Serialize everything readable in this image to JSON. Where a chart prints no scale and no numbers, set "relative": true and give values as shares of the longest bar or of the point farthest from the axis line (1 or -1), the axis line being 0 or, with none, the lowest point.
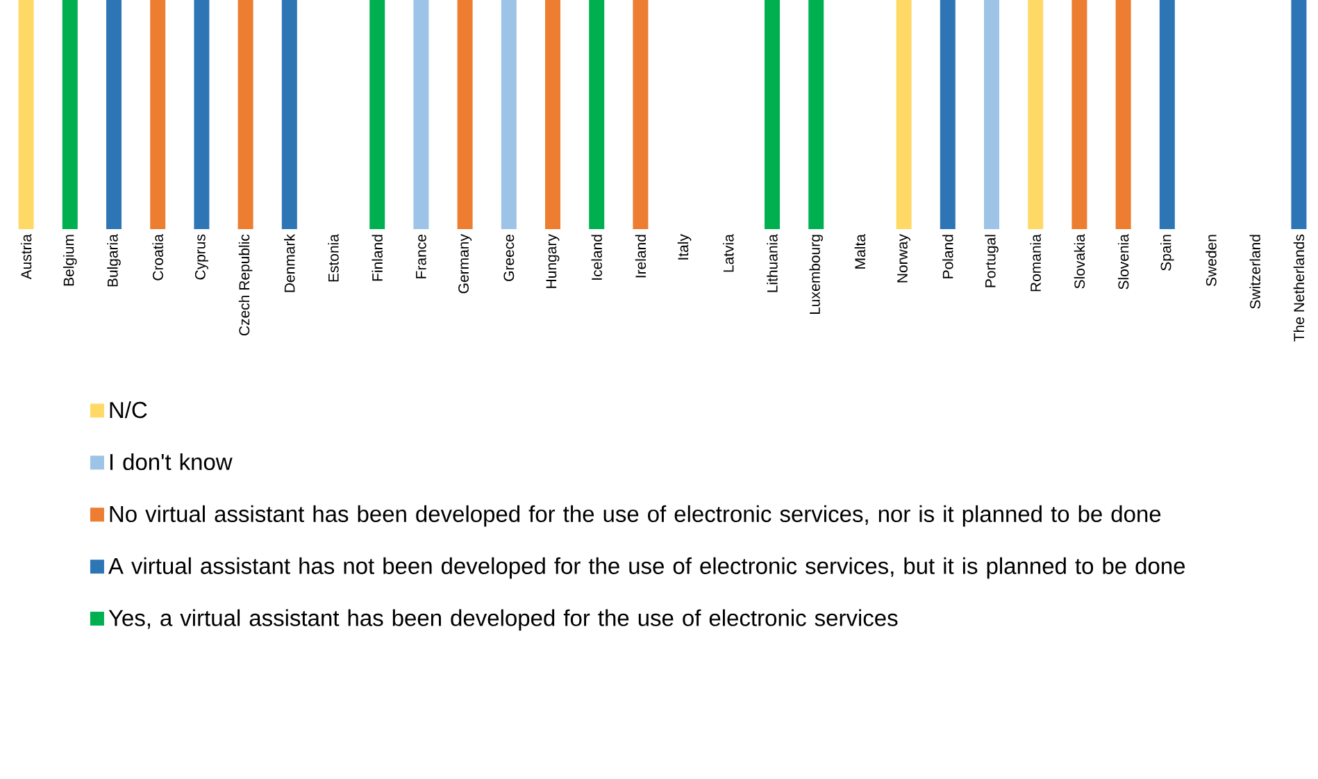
{
  "chart_data": {
    "type": "bar",
    "relative": true,
    "legend": "bottom",
    "categories": [
      "Austria",
      "Belgium",
      "Bulgaria",
      "Croatia",
      "Cyprus",
      "Czech Republic",
      "Denmark",
      "Estonia",
      "Finland",
      "France",
      "Germany",
      "Greece",
      "Hungary",
      "Iceland",
      "Ireland",
      "Italy",
      "Latvia",
      "Lithuania",
      "Luxembourg",
      "Malta",
      "Norway",
      "Poland",
      "Portugal",
      "Romania",
      "Slovakia",
      "Slovenia",
      "Spain",
      "Sweden",
      "Switzerland",
      "The Netherlands"
    ],
    "series": [
      {
        "name": "N/C",
        "color": "#ffd966",
        "values": [
          1,
          null,
          null,
          null,
          null,
          null,
          null,
          null,
          null,
          null,
          null,
          null,
          null,
          null,
          null,
          null,
          null,
          null,
          null,
          null,
          1,
          null,
          null,
          1,
          null,
          null,
          null,
          null,
          null,
          null
        ]
      },
      {
        "name": "I don't know",
        "color": "#9dc3e6",
        "values": [
          null,
          null,
          null,
          null,
          null,
          null,
          null,
          null,
          null,
          1,
          null,
          1,
          null,
          null,
          null,
          null,
          null,
          null,
          null,
          null,
          null,
          null,
          1,
          null,
          null,
          null,
          null,
          null,
          null,
          null
        ]
      },
      {
        "name": "No virtual assistant has been developed for the use of electronic services, nor is it planned to be done",
        "color": "#ed7d31",
        "values": [
          null,
          null,
          null,
          1,
          null,
          1,
          null,
          null,
          null,
          null,
          1,
          null,
          1,
          null,
          1,
          null,
          null,
          null,
          null,
          null,
          null,
          null,
          null,
          null,
          1,
          1,
          null,
          null,
          null,
          null
        ]
      },
      {
        "name": "A virtual assistant has not been developed for the use of electronic services, but it is planned to be done",
        "color": "#2e75b6",
        "values": [
          null,
          null,
          1,
          null,
          1,
          null,
          1,
          null,
          null,
          null,
          null,
          null,
          null,
          null,
          null,
          null,
          null,
          null,
          null,
          null,
          null,
          1,
          null,
          null,
          null,
          null,
          1,
          null,
          null,
          1
        ]
      },
      {
        "name": "Yes, a virtual assistant has been developed for the use of electronic services",
        "color": "#00b050",
        "values": [
          null,
          1,
          null,
          null,
          null,
          null,
          null,
          null,
          1,
          null,
          null,
          null,
          null,
          1,
          null,
          null,
          null,
          1,
          1,
          null,
          null,
          null,
          null,
          null,
          null,
          null,
          null,
          null,
          null,
          null
        ]
      }
    ]
  }
}
